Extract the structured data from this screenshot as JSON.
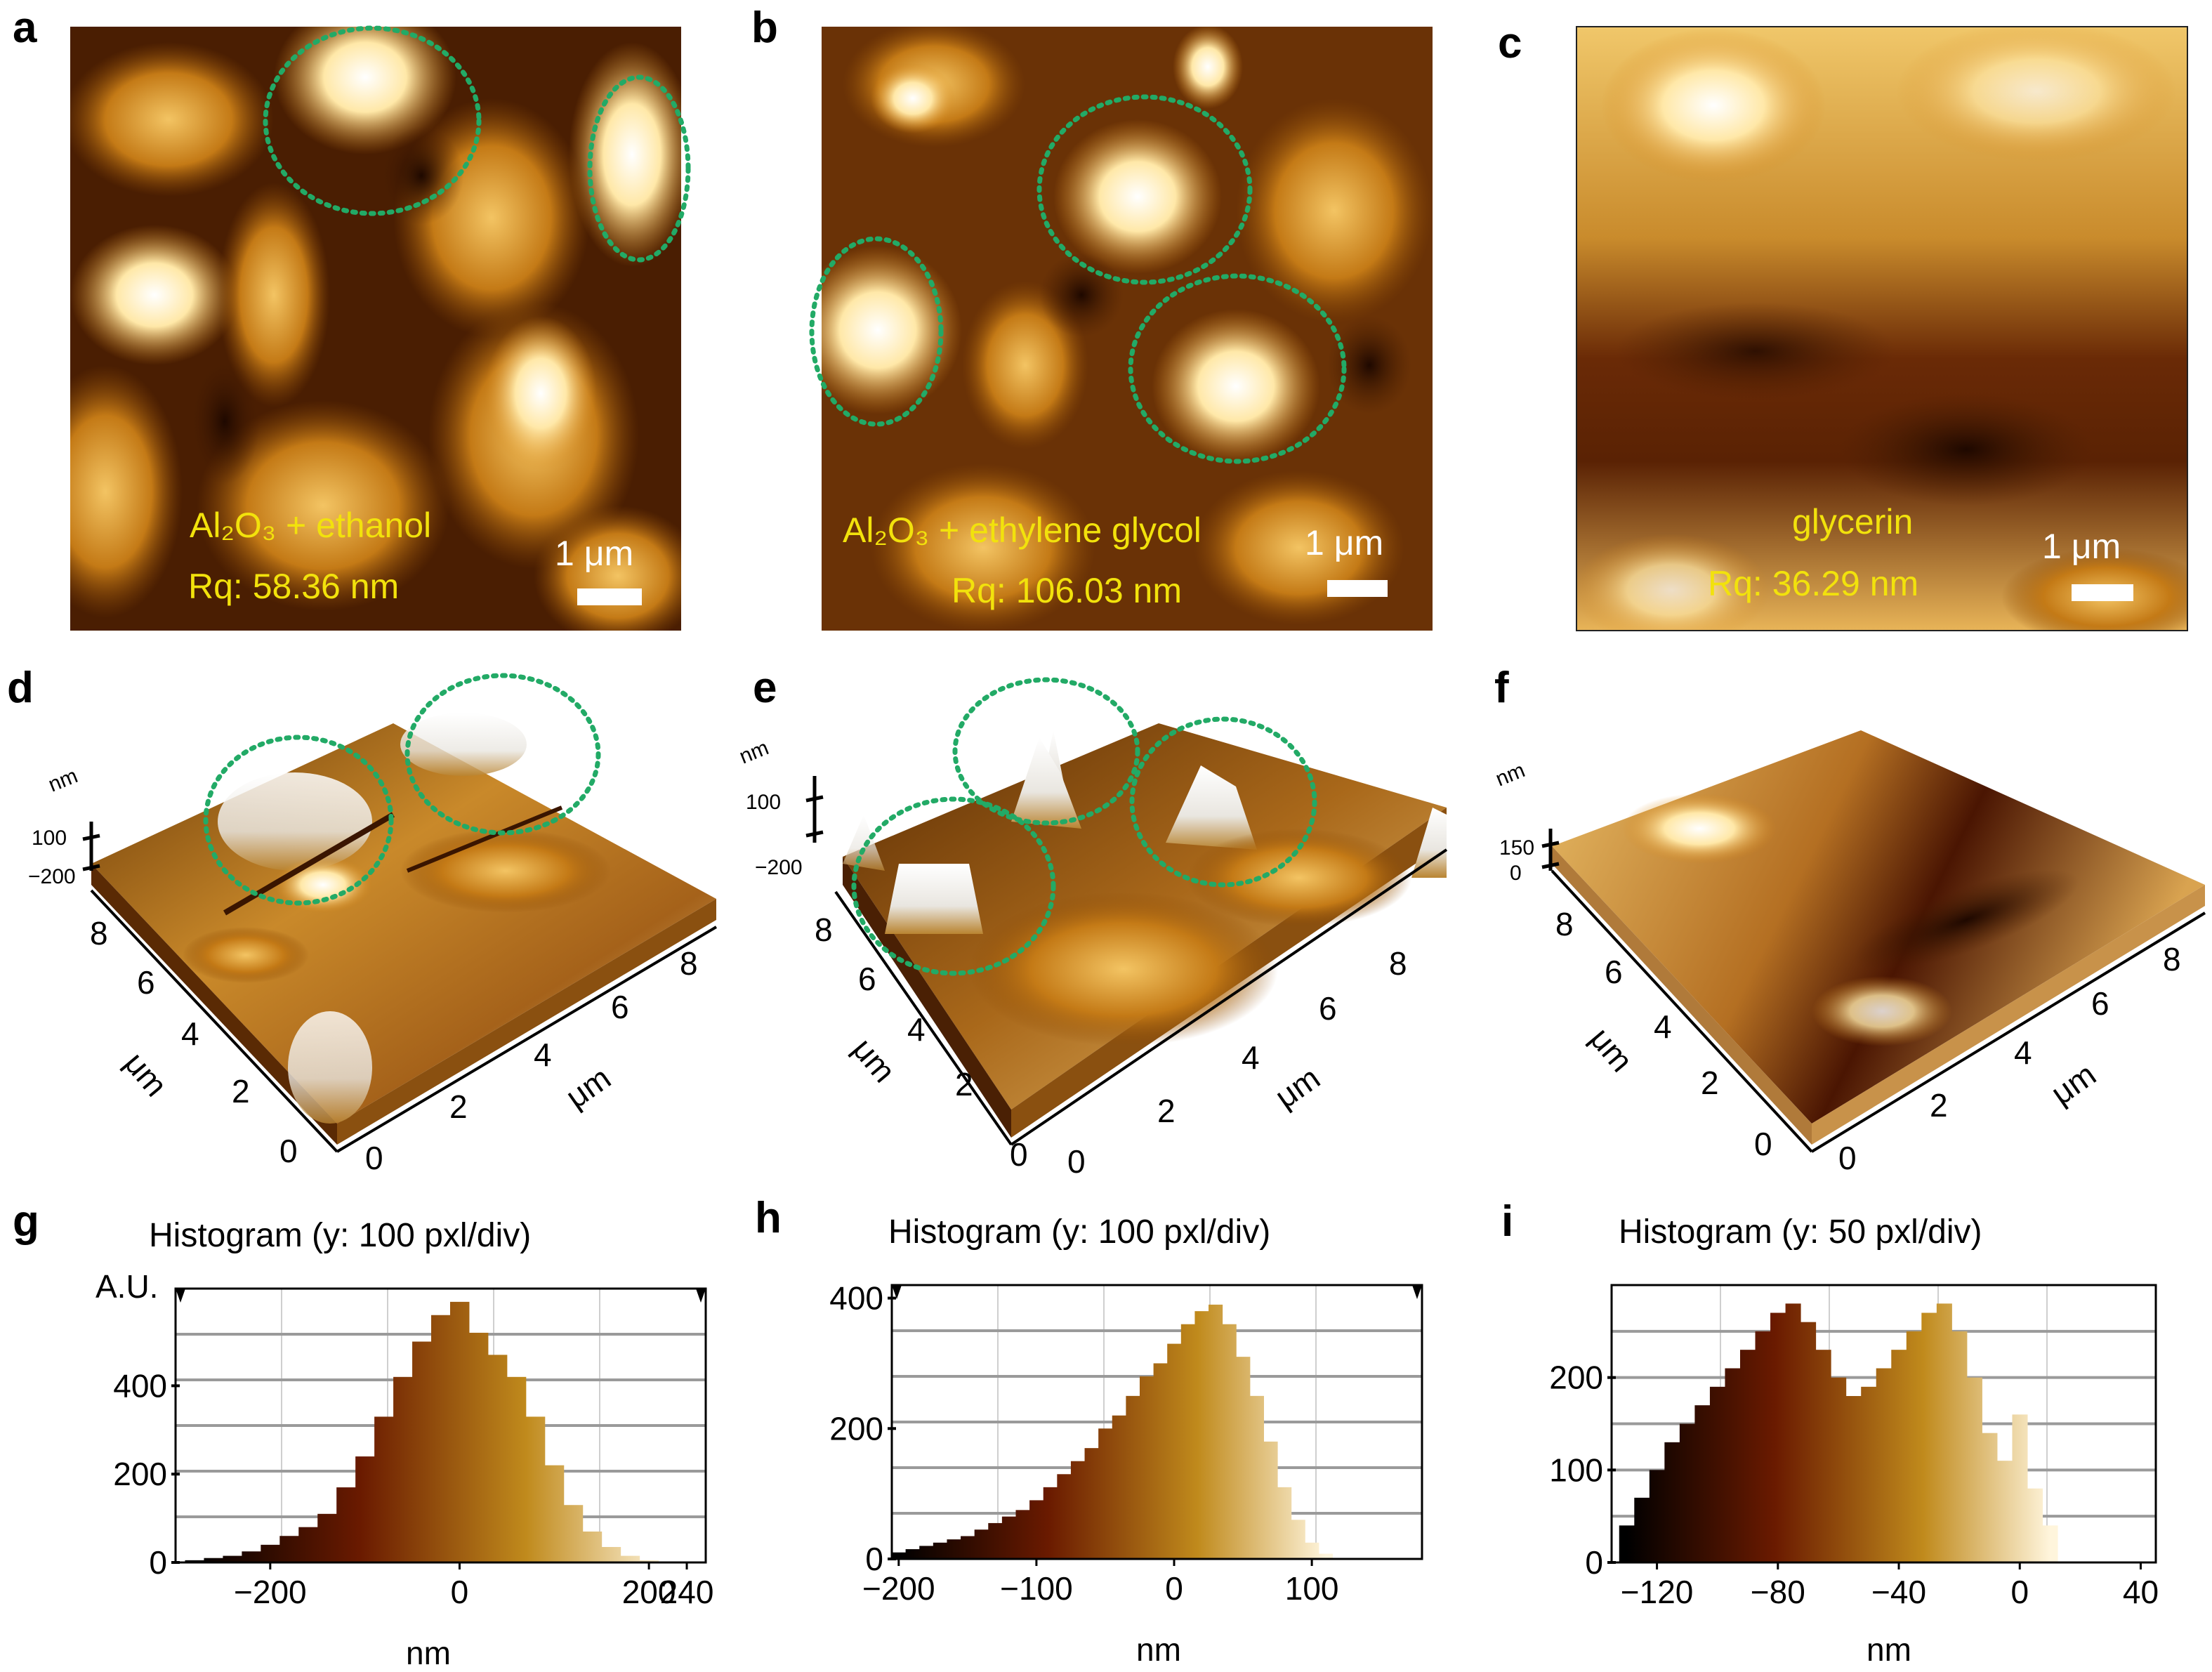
{
  "panels": {
    "a": {
      "label": "a",
      "overlay": "Al₂O₃ + ethanol",
      "rq": "Rq: 58.36 nm",
      "scale": "1 μm"
    },
    "b": {
      "label": "b",
      "overlay": "Al₂O₃ + ethylene glycol",
      "rq": "Rq: 106.03 nm",
      "scale": "1 μm"
    },
    "c": {
      "label": "c",
      "overlay": "glycerin",
      "rq": "Rq: 36.29 nm",
      "scale": "1 μm"
    },
    "d": {
      "label": "d",
      "z_unit": "nm",
      "z_ticks": [
        "100",
        "−200"
      ],
      "axis_unit": "μm",
      "x_ticks": [
        "0",
        "2",
        "4",
        "6",
        "8"
      ],
      "y_ticks": [
        "0",
        "2",
        "4",
        "6",
        "8"
      ]
    },
    "e": {
      "label": "e",
      "z_unit": "nm",
      "z_ticks": [
        "100",
        "−200"
      ],
      "axis_unit": "μm",
      "x_ticks": [
        "0",
        "2",
        "4",
        "6",
        "8"
      ],
      "y_ticks": [
        "0",
        "2",
        "4",
        "6",
        "8"
      ]
    },
    "f": {
      "label": "f",
      "z_unit": "nm",
      "z_ticks": [
        "150",
        "0"
      ],
      "axis_unit": "μm",
      "x_ticks": [
        "0",
        "2",
        "4",
        "6",
        "8"
      ],
      "y_ticks": [
        "0",
        "2",
        "4",
        "6",
        "8"
      ]
    },
    "g": {
      "label": "g",
      "title": "Histogram (y: 100 pxl/div)",
      "ylabel": "A.U.",
      "xlabel": "nm",
      "yticks": [
        "400",
        "200",
        "0"
      ],
      "xticks": [
        "−200",
        "0",
        "200",
        "240"
      ]
    },
    "h": {
      "label": "h",
      "title": "Histogram (y: 100 pxl/div)",
      "xlabel": "nm",
      "yticks": [
        "400",
        "200",
        "0"
      ],
      "xticks": [
        "−200",
        "−100",
        "0",
        "100"
      ]
    },
    "i": {
      "label": "i",
      "title": "Histogram (y: 50 pxl/div)",
      "xlabel": "nm",
      "yticks": [
        "200",
        "100",
        "0"
      ],
      "xticks": [
        "−120",
        "−80",
        "−40",
        "0",
        "40"
      ]
    }
  },
  "colors": {
    "ring": "#22aa66",
    "overlay_text": "#f2e20c",
    "afm_dark": "#3a1600",
    "afm_mid": "#b46a10",
    "afm_light": "#ffe3a0"
  },
  "chart_data": [
    {
      "type": "bar",
      "id": "g",
      "title": "Histogram (y: 100 pxl/div)",
      "xlabel": "nm",
      "ylabel": "A.U.",
      "xlim": [
        -300,
        260
      ],
      "ylim": [
        0,
        620
      ],
      "bin_centers": [
        -280,
        -260,
        -240,
        -220,
        -200,
        -180,
        -160,
        -140,
        -120,
        -100,
        -80,
        -60,
        -40,
        -20,
        0,
        20,
        40,
        60,
        80,
        100,
        120,
        140,
        160,
        180,
        200,
        220
      ],
      "values": [
        5,
        10,
        15,
        25,
        40,
        60,
        80,
        110,
        170,
        240,
        330,
        420,
        500,
        560,
        590,
        520,
        470,
        420,
        330,
        220,
        130,
        70,
        35,
        15,
        5,
        2
      ]
    },
    {
      "type": "bar",
      "id": "h",
      "title": "Histogram (y: 100 pxl/div)",
      "xlabel": "nm",
      "xlim": [
        -205,
        180
      ],
      "ylim": [
        0,
        420
      ],
      "bin_centers": [
        -200,
        -190,
        -180,
        -170,
        -160,
        -150,
        -140,
        -130,
        -120,
        -110,
        -100,
        -90,
        -80,
        -70,
        -60,
        -50,
        -40,
        -30,
        -20,
        -10,
        0,
        10,
        20,
        30,
        40,
        50,
        60,
        70,
        80,
        90,
        100,
        110
      ],
      "values": [
        10,
        15,
        20,
        25,
        30,
        35,
        45,
        55,
        65,
        75,
        90,
        110,
        130,
        150,
        170,
        200,
        220,
        250,
        280,
        300,
        330,
        360,
        380,
        390,
        360,
        310,
        250,
        180,
        110,
        60,
        25,
        8
      ]
    },
    {
      "type": "bar",
      "id": "i",
      "title": "Histogram (y: 50 pxl/div)",
      "xlabel": "nm",
      "xlim": [
        -135,
        45
      ],
      "ylim": [
        0,
        300
      ],
      "bin_centers": [
        -130,
        -125,
        -120,
        -115,
        -110,
        -105,
        -100,
        -95,
        -90,
        -85,
        -80,
        -75,
        -70,
        -65,
        -60,
        -55,
        -50,
        -45,
        -40,
        -35,
        -30,
        -25,
        -20,
        -15,
        -10,
        -5,
        0,
        5,
        10
      ],
      "values": [
        40,
        70,
        100,
        130,
        150,
        170,
        190,
        210,
        230,
        250,
        270,
        280,
        260,
        230,
        200,
        180,
        190,
        210,
        230,
        250,
        270,
        280,
        250,
        200,
        140,
        110,
        160,
        80,
        40
      ]
    }
  ]
}
